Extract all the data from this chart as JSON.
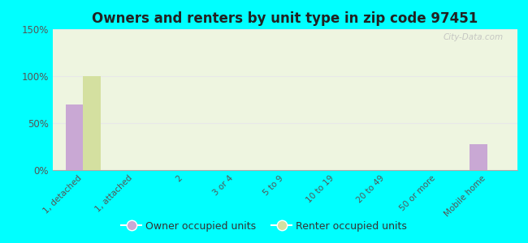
{
  "title": "Owners and renters by unit type in zip code 97451",
  "categories": [
    "1, detached",
    "1, attached",
    "2",
    "3 or 4",
    "5 to 9",
    "10 to 19",
    "20 to 49",
    "50 or more",
    "Mobile home"
  ],
  "owner_values": [
    70,
    0,
    0,
    0,
    0,
    0,
    0,
    0,
    28
  ],
  "renter_values": [
    100,
    0,
    0,
    0,
    0,
    0,
    0,
    0,
    0
  ],
  "owner_color": "#c9a8d4",
  "renter_color": "#d4e0a0",
  "background_color": "#00ffff",
  "plot_bg_color": "#eef5e0",
  "ylim": [
    0,
    150
  ],
  "yticks": [
    0,
    50,
    100,
    150
  ],
  "ytick_labels": [
    "0%",
    "50%",
    "100%",
    "150%"
  ],
  "legend_owner": "Owner occupied units",
  "legend_renter": "Renter occupied units",
  "bar_width": 0.35,
  "watermark": "City-Data.com"
}
